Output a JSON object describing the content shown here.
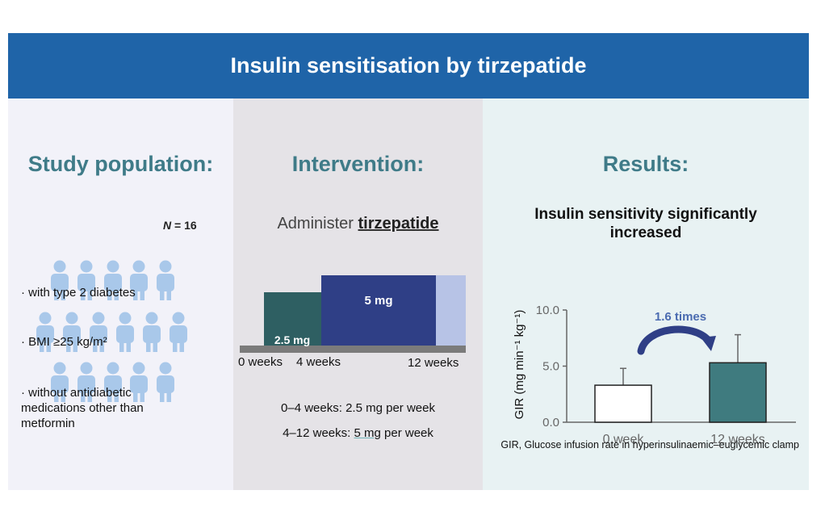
{
  "header": {
    "title": "Insulin sensitisation by tirzepatide"
  },
  "population": {
    "title": "Study population:",
    "n_label": "N",
    "n_value": "= 16",
    "bullets": [
      "· with type 2 diabetes",
      "· BMI ≥25 kg/m²",
      "· without antidiabetic medications other than metformin"
    ],
    "icon": "person-icon",
    "icon_color": "#a9c8ea"
  },
  "intervention": {
    "title": "Intervention:",
    "administer_prefix": "Administer",
    "drug": "tirzepatide",
    "phases": [
      {
        "label": "2.5 mg",
        "start_week": 0,
        "end_week": 4,
        "color": "#2e5f62"
      },
      {
        "label": "5 mg",
        "start_week": 4,
        "end_week": 12,
        "color": "#2f3f86"
      }
    ],
    "timeline_labels": [
      "0 weeks",
      "4 weeks",
      "12 weeks"
    ],
    "dose_line_1": "0–4 weeks: 2.5 mg per week",
    "dose_line_2_prefix": "4–12 weeks: ",
    "dose_line_2_underlined": "5 mg",
    "dose_line_2_suffix": " per week"
  },
  "results": {
    "title": "Results:",
    "subtitle_line_1": "Insulin sensitivity significantly",
    "subtitle_line_2": "increased",
    "fold_change_label": "1.6 times",
    "footnote": "GIR, Glucose infusion rate in hyperinsulinaemic–euglycemic clamp"
  },
  "chart_data": {
    "type": "bar",
    "categories": [
      "0 week",
      "12 weeks"
    ],
    "values": [
      3.3,
      5.3
    ],
    "error_upper": [
      4.8,
      7.8
    ],
    "colors": [
      "#ffffff",
      "#3f7b7f"
    ],
    "ylabel": "GIR (mg min⁻¹ kg⁻¹)",
    "ylim": [
      0,
      10
    ],
    "yticks": [
      "0.0",
      "5.0",
      "10.0"
    ],
    "grid": false
  }
}
